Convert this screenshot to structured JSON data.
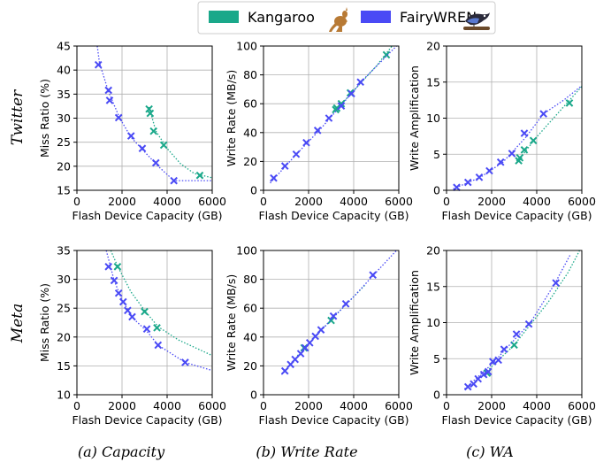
{
  "legend": {
    "items": [
      {
        "label": "Kangaroo",
        "color": "#1aa88a",
        "icon": "kangaroo-icon"
      },
      {
        "label": "FairyWREN",
        "color": "#4a4af5",
        "icon": "bird-icon"
      }
    ]
  },
  "row_labels": [
    "Twitter",
    "Meta"
  ],
  "captions": [
    "(a) Capacity",
    "(b) Write Rate",
    "(c) WA"
  ],
  "chart_data": [
    {
      "id": "twitter-capacity",
      "type": "scatter",
      "xlabel": "Flash Device Capacity (GB)",
      "ylabel": "Miss Ratio (%)",
      "xlim": [
        0,
        6000
      ],
      "ylim": [
        15,
        45
      ],
      "xticks": [
        0,
        2000,
        4000,
        6000
      ],
      "yticks": [
        15,
        20,
        25,
        30,
        35,
        40,
        45
      ],
      "grid": true,
      "series": [
        {
          "name": "Kangaroo",
          "points": [
            [
              3200,
              31.9
            ],
            [
              3250,
              31.0
            ],
            [
              3400,
              27.3
            ],
            [
              3850,
              24.4
            ],
            [
              5450,
              18.1
            ]
          ],
          "trend": [
            [
              3200,
              32.3
            ],
            [
              3500,
              27.3
            ],
            [
              4000,
              23.7
            ],
            [
              4600,
              20.5
            ],
            [
              5200,
              18.5
            ],
            [
              6000,
              17.6
            ]
          ]
        },
        {
          "name": "FairyWREN",
          "points": [
            [
              950,
              41.1
            ],
            [
              1400,
              35.8
            ],
            [
              1450,
              33.7
            ],
            [
              1850,
              30.1
            ],
            [
              2400,
              26.3
            ],
            [
              2900,
              23.7
            ],
            [
              3500,
              20.7
            ],
            [
              4300,
              17.0
            ]
          ],
          "trend": [
            [
              900,
              45
            ],
            [
              1000,
              41.5
            ],
            [
              1400,
              35.5
            ],
            [
              1900,
              30.0
            ],
            [
              2400,
              26.0
            ],
            [
              3000,
              23.0
            ],
            [
              3600,
              20.0
            ],
            [
              4300,
              17.0
            ],
            [
              6000,
              17.0
            ]
          ]
        }
      ]
    },
    {
      "id": "twitter-write-rate",
      "type": "scatter",
      "xlabel": "Flash Device Capacity (GB)",
      "ylabel": "Write Rate (MB/s)",
      "xlim": [
        0,
        6000
      ],
      "ylim": [
        0,
        100
      ],
      "xticks": [
        0,
        2000,
        4000,
        6000
      ],
      "yticks": [
        0,
        20,
        40,
        60,
        80,
        100
      ],
      "grid": true,
      "series": [
        {
          "name": "Kangaroo",
          "points": [
            [
              3200,
              55.9
            ],
            [
              3250,
              57.0
            ],
            [
              3450,
              60.0
            ],
            [
              3850,
              67.5
            ],
            [
              5450,
              93.9
            ]
          ],
          "trend": [
            [
              3100,
              54
            ],
            [
              4000,
              69
            ],
            [
              5000,
              86
            ],
            [
              5700,
              100
            ]
          ]
        },
        {
          "name": "FairyWREN",
          "points": [
            [
              450,
              8.5
            ],
            [
              950,
              16.8
            ],
            [
              1450,
              25.0
            ],
            [
              1900,
              33.0
            ],
            [
              2400,
              41.5
            ],
            [
              2900,
              50.0
            ],
            [
              3450,
              58.5
            ],
            [
              3900,
              67.0
            ],
            [
              4300,
              75.0
            ]
          ],
          "trend": [
            [
              300,
              5
            ],
            [
              1400,
              24
            ],
            [
              2500,
              42
            ],
            [
              3500,
              60
            ],
            [
              4500,
              78
            ],
            [
              5900,
              100
            ]
          ]
        }
      ]
    },
    {
      "id": "twitter-wa",
      "type": "scatter",
      "xlabel": "Flash Device Capacity (GB)",
      "ylabel": "Write Amplification",
      "xlim": [
        0,
        6000
      ],
      "ylim": [
        0,
        20
      ],
      "xticks": [
        0,
        2000,
        4000,
        6000
      ],
      "yticks": [
        0,
        5,
        10,
        15,
        20
      ],
      "grid": true,
      "series": [
        {
          "name": "Kangaroo",
          "points": [
            [
              3200,
              4.1
            ],
            [
              3250,
              4.5
            ],
            [
              3450,
              5.6
            ],
            [
              3850,
              6.9
            ],
            [
              5450,
              12.1
            ]
          ],
          "trend": [
            [
              3100,
              3.8
            ],
            [
              4000,
              7.4
            ],
            [
              5000,
              10.9
            ],
            [
              6000,
              14.4
            ]
          ]
        },
        {
          "name": "FairyWREN",
          "points": [
            [
              450,
              0.4
            ],
            [
              950,
              1.1
            ],
            [
              1450,
              1.8
            ],
            [
              1900,
              2.7
            ],
            [
              2400,
              3.9
            ],
            [
              2900,
              5.1
            ],
            [
              3450,
              7.9
            ],
            [
              4300,
              10.6
            ]
          ],
          "trend": [
            [
              300,
              0.2
            ],
            [
              1500,
              1.8
            ],
            [
              2500,
              3.9
            ],
            [
              3500,
              7.3
            ],
            [
              4300,
              10.6
            ],
            [
              5200,
              12.5
            ],
            [
              6000,
              14.5
            ]
          ]
        }
      ]
    },
    {
      "id": "meta-capacity",
      "type": "scatter",
      "xlabel": "Flash Device Capacity (GB)",
      "ylabel": "Miss Ratio (%)",
      "xlim": [
        0,
        6000
      ],
      "ylim": [
        10,
        35
      ],
      "xticks": [
        0,
        2000,
        4000,
        6000
      ],
      "yticks": [
        10,
        15,
        20,
        25,
        30,
        35
      ],
      "grid": true,
      "series": [
        {
          "name": "Kangaroo",
          "points": [
            [
              1800,
              32.2
            ],
            [
              3000,
              24.4
            ],
            [
              3550,
              21.6
            ]
          ],
          "trend": [
            [
              1500,
              35
            ],
            [
              1800,
              32.3
            ],
            [
              2400,
              27.8
            ],
            [
              3000,
              24.6
            ],
            [
              3600,
              21.8
            ],
            [
              4500,
              19.5
            ],
            [
              6000,
              16.8
            ]
          ]
        },
        {
          "name": "FairyWREN",
          "points": [
            [
              1400,
              32.2
            ],
            [
              1650,
              29.8
            ],
            [
              1850,
              27.6
            ],
            [
              2050,
              26.1
            ],
            [
              2250,
              24.6
            ],
            [
              2450,
              23.5
            ],
            [
              3100,
              21.4
            ],
            [
              3600,
              18.6
            ],
            [
              4800,
              15.6
            ]
          ],
          "trend": [
            [
              1300,
              35
            ],
            [
              1650,
              29.8
            ],
            [
              2000,
              26.4
            ],
            [
              2500,
              23.2
            ],
            [
              3100,
              21.0
            ],
            [
              3600,
              18.6
            ],
            [
              4800,
              15.6
            ],
            [
              6000,
              14.2
            ]
          ]
        }
      ]
    },
    {
      "id": "meta-write-rate",
      "type": "scatter",
      "xlabel": "Flash Device Capacity (GB)",
      "ylabel": "Write Rate (MB/s)",
      "xlim": [
        0,
        6000
      ],
      "ylim": [
        0,
        100
      ],
      "xticks": [
        0,
        2000,
        4000,
        6000
      ],
      "yticks": [
        0,
        20,
        40,
        60,
        80,
        100
      ],
      "grid": true,
      "series": [
        {
          "name": "Kangaroo",
          "points": [
            [
              1800,
              32.5
            ],
            [
              3000,
              51.5
            ]
          ],
          "trend": [
            [
              1500,
              27
            ],
            [
              3000,
              52
            ],
            [
              4500,
              76
            ]
          ]
        },
        {
          "name": "FairyWREN",
          "points": [
            [
              950,
              16.5
            ],
            [
              1200,
              21.0
            ],
            [
              1400,
              24.5
            ],
            [
              1650,
              28.5
            ],
            [
              1850,
              32.5
            ],
            [
              2050,
              36.0
            ],
            [
              2300,
              40.5
            ],
            [
              2550,
              45.0
            ],
            [
              3100,
              54.5
            ],
            [
              3650,
              63.0
            ],
            [
              4850,
              83.0
            ]
          ],
          "trend": [
            [
              800,
              14
            ],
            [
              2000,
              35
            ],
            [
              3000,
              52
            ],
            [
              4000,
              68
            ],
            [
              5000,
              85
            ],
            [
              5900,
              100
            ]
          ]
        }
      ]
    },
    {
      "id": "meta-wa",
      "type": "scatter",
      "xlabel": "Flash Device Capacity (GB)",
      "ylabel": "Write Amplification",
      "xlim": [
        0,
        6000
      ],
      "ylim": [
        0,
        20
      ],
      "xticks": [
        0,
        2000,
        4000,
        6000
      ],
      "yticks": [
        0,
        5,
        10,
        15,
        20
      ],
      "grid": true,
      "series": [
        {
          "name": "Kangaroo",
          "points": [
            [
              1800,
              3.0
            ],
            [
              3000,
              6.9
            ]
          ],
          "trend": [
            [
              1200,
              1.5
            ],
            [
              3000,
              6.9
            ],
            [
              4500,
              12.8
            ],
            [
              5400,
              17.0
            ],
            [
              5900,
              20
            ]
          ]
        },
        {
          "name": "FairyWREN",
          "points": [
            [
              950,
              1.1
            ],
            [
              1200,
              1.5
            ],
            [
              1400,
              2.2
            ],
            [
              1650,
              2.8
            ],
            [
              1850,
              3.2
            ],
            [
              2050,
              4.6
            ],
            [
              2300,
              4.8
            ],
            [
              2550,
              6.3
            ],
            [
              3100,
              8.4
            ],
            [
              3650,
              9.8
            ],
            [
              4850,
              15.5
            ]
          ],
          "trend": [
            [
              800,
              0.8
            ],
            [
              2000,
              4.2
            ],
            [
              3000,
              7.6
            ],
            [
              3700,
              9.9
            ],
            [
              4800,
              15.4
            ],
            [
              5500,
              19.5
            ]
          ]
        }
      ]
    }
  ]
}
